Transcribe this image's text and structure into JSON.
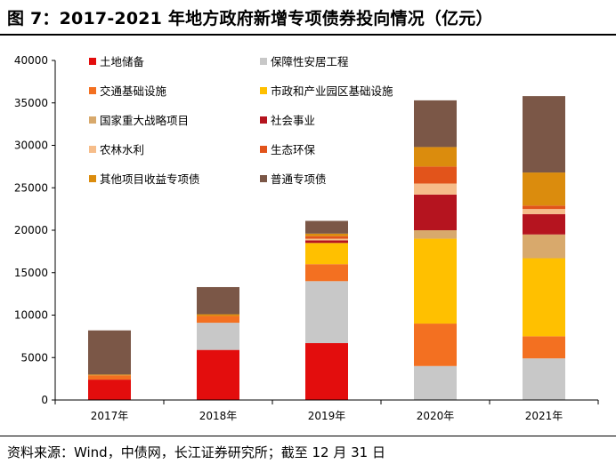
{
  "figure": {
    "title": "图 7：2017-2021 年地方政府新增专项债券投向情况（亿元）",
    "source": "资料来源：Wind，中债网，长江证券研究所；截至 12 月 31 日"
  },
  "chart_data": {
    "type": "bar",
    "stacked": true,
    "title": "2017-2021 年地方政府新增专项债券投向情况（亿元）",
    "xlabel": "",
    "ylabel": "",
    "ylim": [
      0,
      40000
    ],
    "yticks": [
      0,
      5000,
      10000,
      15000,
      20000,
      25000,
      30000,
      35000,
      40000
    ],
    "legend_position": "top-left",
    "categories": [
      "2017年",
      "2018年",
      "2019年",
      "2020年",
      "2021年"
    ],
    "series": [
      {
        "name": "普通专项债",
        "color": "#7B5747",
        "values": [
          5200,
          3200,
          1500,
          5500,
          9000
        ]
      },
      {
        "name": "其他项目收益专项债",
        "color": "#DB8C0D",
        "values": [
          100,
          200,
          300,
          2300,
          3900
        ]
      },
      {
        "name": "生态环保",
        "color": "#E2541B",
        "values": [
          0,
          0,
          300,
          2000,
          400
        ]
      },
      {
        "name": "农林水利",
        "color": "#F6BD8A",
        "values": [
          0,
          0,
          200,
          1300,
          600
        ]
      },
      {
        "name": "社会事业",
        "color": "#B5141F",
        "values": [
          0,
          0,
          300,
          4200,
          2400
        ]
      },
      {
        "name": "国家重大战略项目",
        "color": "#D8A96C",
        "values": [
          0,
          0,
          0,
          1000,
          2800
        ]
      },
      {
        "name": "市政和产业园区基础设施",
        "color": "#FFC000",
        "values": [
          0,
          0,
          2500,
          10000,
          9200
        ]
      },
      {
        "name": "交通基础设施",
        "color": "#F37021",
        "values": [
          500,
          800,
          2000,
          5000,
          2600
        ]
      },
      {
        "name": "保障性安居工程",
        "color": "#C8C8C8",
        "values": [
          0,
          3200,
          7300,
          4000,
          4900
        ]
      },
      {
        "name": "土地储备",
        "color": "#E30D0D",
        "values": [
          2400,
          5900,
          6700,
          0,
          0
        ]
      }
    ],
    "legend_order": [
      "土地储备",
      "保障性安居工程",
      "交通基础设施",
      "市政和产业园区基础设施",
      "国家重大战略项目",
      "社会事业",
      "农林水利",
      "生态环保",
      "其他项目收益专项债",
      "普通专项债"
    ]
  }
}
